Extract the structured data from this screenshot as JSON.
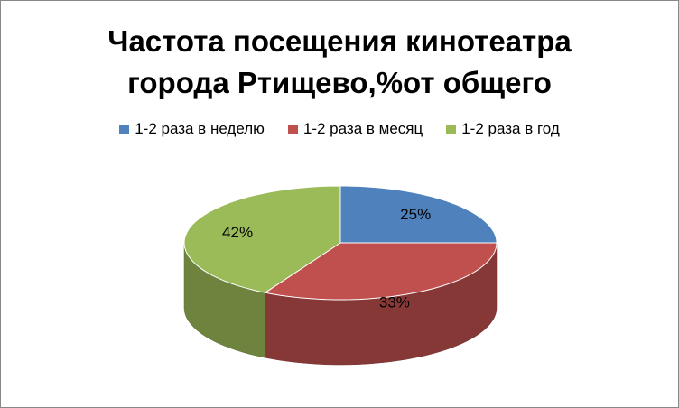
{
  "chart_data": {
    "type": "pie3d",
    "title": "Частота посещения кинотеатра города Ртищево,%от общего",
    "categories": [
      "1-2 раза в неделю",
      "1-2 раза в месяц",
      "1-2 раза в год"
    ],
    "values": [
      25,
      33,
      42
    ],
    "value_labels": [
      "25%",
      "33%",
      "42%"
    ],
    "colors": [
      "#4f81bd",
      "#c0504d",
      "#9bbb59"
    ],
    "legend": "top"
  }
}
